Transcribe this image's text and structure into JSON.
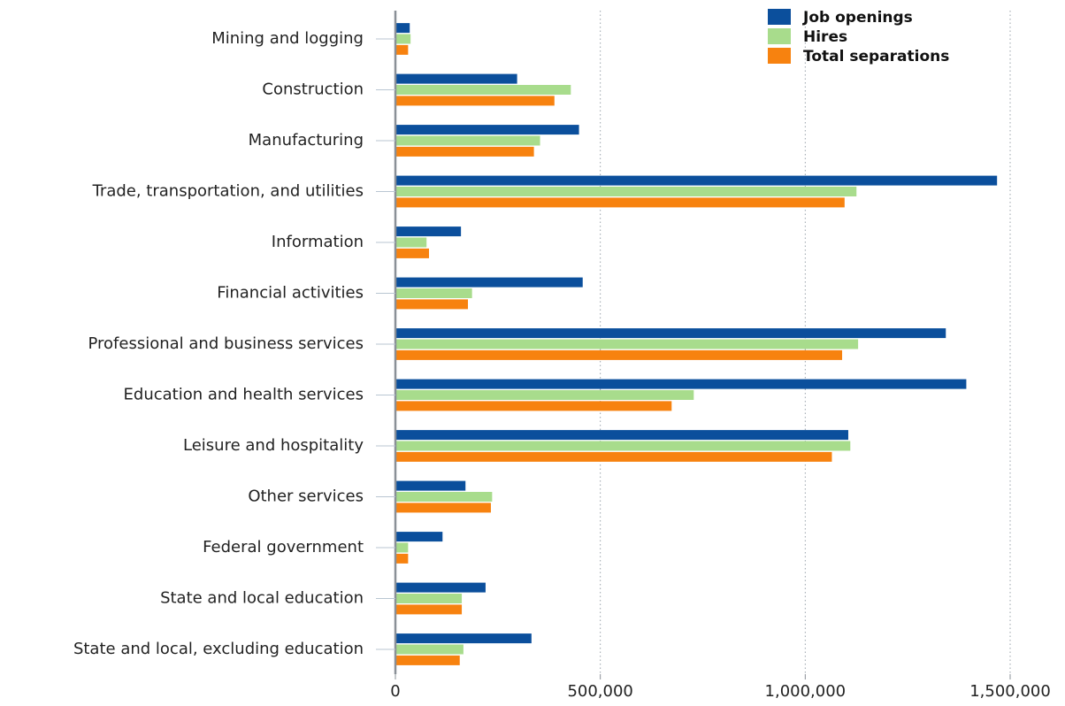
{
  "chart_data": {
    "type": "bar",
    "orientation": "horizontal",
    "title": "",
    "xlabel": "",
    "ylabel": "",
    "categories": [
      "Mining and logging",
      "Construction",
      "Manufacturing",
      "Trade, transportation, and utilities",
      "Information",
      "Financial activities",
      "Professional and business services",
      "Education and health services",
      "Leisure and hospitality",
      "Other services",
      "Federal government",
      "State and local education",
      "State and local, excluding education"
    ],
    "series": [
      {
        "name": "Job openings",
        "color": "#0b4f9c",
        "values": [
          35000,
          297000,
          448000,
          1468000,
          160000,
          457000,
          1343000,
          1393000,
          1105000,
          171000,
          115000,
          220000,
          332000
        ]
      },
      {
        "name": "Hires",
        "color": "#a8dc8c",
        "values": [
          37000,
          428000,
          353000,
          1125000,
          76000,
          187000,
          1129000,
          728000,
          1110000,
          236000,
          31000,
          162000,
          166000
        ]
      },
      {
        "name": "Total separations",
        "color": "#f7820f",
        "values": [
          31000,
          388000,
          338000,
          1096000,
          82000,
          177000,
          1090000,
          674000,
          1065000,
          233000,
          31000,
          162000,
          157000
        ]
      }
    ],
    "xlim": [
      0,
      1500000
    ],
    "xticks": [
      0,
      500000,
      1000000,
      1500000
    ],
    "xtick_labels": [
      "0",
      "500,000",
      "1,000,000",
      "1,500,000"
    ],
    "grid": "vertical dotted",
    "legend_position": "top-right"
  }
}
